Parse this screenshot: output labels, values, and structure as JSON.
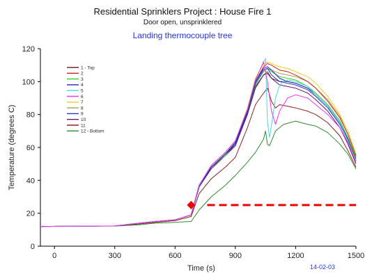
{
  "header": {
    "title": "Residential Sprinklers Project : House Fire 1",
    "subtitle": "Door open, unsprinklered",
    "caption": "Landing thermocouple tree",
    "caption_color": "#2233dd"
  },
  "footer": {
    "date": "14-02-03",
    "date_color": "#2233dd"
  },
  "chart_data": {
    "type": "line",
    "xlabel": "Time (s)",
    "ylabel": "Temperature (degrees C)",
    "xlim": [
      -70,
      1500
    ],
    "ylim": [
      0,
      120
    ],
    "xticks": [
      0,
      300,
      600,
      900,
      1200,
      1500
    ],
    "yticks": [
      0,
      20,
      40,
      60,
      80,
      100,
      120
    ],
    "grid": false,
    "legend_position": "top-left",
    "series": [
      {
        "name": "1 - Top",
        "color": "#6b2a2a",
        "x": [
          -70,
          300,
          420,
          500,
          600,
          680,
          720,
          780,
          850,
          900,
          960,
          1000,
          1040,
          1060,
          1080,
          1120,
          1160,
          1200,
          1260,
          1300,
          1360,
          1420,
          1460,
          1500
        ],
        "y": [
          12,
          12.3,
          14,
          15,
          16,
          19,
          36,
          48,
          55,
          62,
          80,
          96,
          104,
          106,
          102,
          100,
          100,
          99,
          96,
          92,
          85,
          75,
          65,
          53
        ]
      },
      {
        "name": "2",
        "color": "#d22020",
        "x": [
          -70,
          300,
          420,
          500,
          600,
          680,
          720,
          780,
          850,
          900,
          960,
          1000,
          1040,
          1060,
          1080,
          1120,
          1160,
          1200,
          1260,
          1300,
          1360,
          1420,
          1460,
          1500
        ],
        "y": [
          12,
          12.3,
          14,
          15,
          16,
          19,
          37,
          49,
          57,
          64,
          83,
          100,
          109,
          111,
          110,
          107,
          106,
          104,
          100,
          96,
          88,
          78,
          68,
          55
        ]
      },
      {
        "name": "3",
        "color": "#33cc33",
        "x": [
          -70,
          300,
          420,
          500,
          600,
          680,
          720,
          780,
          850,
          900,
          960,
          1000,
          1040,
          1060,
          1080,
          1120,
          1160,
          1200,
          1260,
          1300,
          1360,
          1420,
          1460,
          1500
        ],
        "y": [
          12,
          12.3,
          14,
          15,
          16,
          19,
          36,
          48,
          55,
          63,
          81,
          98,
          106,
          108,
          106,
          103,
          102,
          101,
          97,
          93,
          86,
          76,
          66,
          54
        ]
      },
      {
        "name": "4",
        "color": "#2222aa",
        "x": [
          -70,
          300,
          420,
          500,
          600,
          680,
          720,
          780,
          850,
          900,
          960,
          1000,
          1040,
          1060,
          1080,
          1120,
          1160,
          1200,
          1260,
          1300,
          1360,
          1420,
          1460,
          1500
        ],
        "y": [
          12,
          12.3,
          14,
          15,
          16,
          19,
          37,
          48,
          56,
          63,
          82,
          100,
          108,
          109,
          107,
          102,
          100,
          99,
          96,
          92,
          85,
          75,
          65,
          52
        ]
      },
      {
        "name": "5",
        "color": "#44dddd",
        "x": [
          -70,
          300,
          420,
          500,
          600,
          680,
          720,
          780,
          850,
          900,
          960,
          1000,
          1040,
          1050,
          1060,
          1070,
          1085,
          1100,
          1120,
          1140,
          1160,
          1200,
          1260,
          1300,
          1360,
          1420,
          1460,
          1500
        ],
        "y": [
          12,
          12.3,
          14,
          15,
          16,
          19,
          37,
          49,
          57,
          64,
          83,
          101,
          112,
          114,
          75,
          66,
          78,
          90,
          98,
          100,
          101,
          100,
          97,
          92,
          85,
          75,
          64,
          52
        ]
      },
      {
        "name": "6",
        "color": "#ee33ee",
        "x": [
          -70,
          300,
          420,
          500,
          600,
          680,
          720,
          780,
          850,
          900,
          960,
          1000,
          1040,
          1060,
          1080,
          1100,
          1120,
          1160,
          1200,
          1260,
          1300,
          1360,
          1420,
          1460,
          1500
        ],
        "y": [
          12,
          12.3,
          14,
          15,
          16,
          19,
          37,
          49,
          57,
          64,
          83,
          101,
          112,
          100,
          82,
          74,
          82,
          90,
          92,
          90,
          86,
          80,
          72,
          63,
          51
        ]
      },
      {
        "name": "7",
        "color": "#e8d020",
        "x": [
          -70,
          300,
          420,
          500,
          600,
          680,
          720,
          780,
          850,
          900,
          960,
          1000,
          1040,
          1060,
          1080,
          1120,
          1160,
          1200,
          1260,
          1300,
          1360,
          1420,
          1460,
          1500
        ],
        "y": [
          12,
          12.3,
          14,
          15,
          16,
          19,
          37,
          49,
          57,
          64,
          84,
          102,
          111,
          112,
          111,
          109,
          108,
          106,
          103,
          99,
          91,
          80,
          70,
          56
        ]
      },
      {
        "name": "8",
        "color": "#a8a060",
        "x": [
          -70,
          300,
          420,
          500,
          600,
          680,
          720,
          780,
          850,
          900,
          960,
          1000,
          1040,
          1060,
          1080,
          1120,
          1160,
          1200,
          1260,
          1300,
          1360,
          1420,
          1460,
          1500
        ],
        "y": [
          12,
          12.3,
          14,
          15,
          16,
          19,
          36,
          48,
          56,
          63,
          82,
          99,
          107,
          108,
          107,
          105,
          104,
          103,
          100,
          96,
          89,
          79,
          68,
          55
        ]
      },
      {
        "name": "9",
        "color": "#2233cc",
        "x": [
          -70,
          300,
          420,
          500,
          600,
          680,
          720,
          780,
          850,
          900,
          960,
          1000,
          1040,
          1060,
          1080,
          1120,
          1160,
          1200,
          1260,
          1300,
          1360,
          1420,
          1460,
          1500
        ],
        "y": [
          12,
          12.3,
          14,
          15,
          16,
          19,
          36,
          48,
          56,
          62,
          81,
          99,
          107,
          108,
          104,
          100,
          99,
          98,
          95,
          91,
          84,
          74,
          64,
          52
        ]
      },
      {
        "name": "10",
        "color": "#661a66",
        "x": [
          -70,
          300,
          420,
          500,
          600,
          680,
          720,
          780,
          850,
          900,
          960,
          1000,
          1040,
          1060,
          1080,
          1120,
          1160,
          1200,
          1260,
          1300,
          1360,
          1420,
          1460,
          1500
        ],
        "y": [
          12,
          12.3,
          14,
          15,
          16,
          19,
          36,
          47,
          55,
          61,
          80,
          97,
          104,
          105,
          102,
          98,
          97,
          96,
          93,
          89,
          82,
          72,
          62,
          50
        ]
      },
      {
        "name": "11",
        "color": "#8b2020",
        "x": [
          -70,
          300,
          420,
          500,
          600,
          680,
          720,
          780,
          850,
          900,
          960,
          1000,
          1040,
          1060,
          1080,
          1100,
          1120,
          1160,
          1200,
          1260,
          1300,
          1360,
          1420,
          1460,
          1500
        ],
        "y": [
          12,
          12.3,
          13.5,
          14.5,
          15.5,
          18,
          32,
          41,
          48,
          54,
          72,
          86,
          93,
          96,
          88,
          84,
          86,
          85,
          84,
          82,
          80,
          75,
          67,
          58,
          48
        ]
      },
      {
        "name": "12 - Bottom",
        "color": "#2e8b2e",
        "x": [
          -70,
          300,
          420,
          500,
          600,
          680,
          720,
          780,
          850,
          900,
          960,
          1000,
          1040,
          1050,
          1060,
          1070,
          1100,
          1140,
          1200,
          1260,
          1300,
          1360,
          1420,
          1460,
          1500
        ],
        "y": [
          12,
          12.2,
          13,
          14,
          14.5,
          15,
          22,
          30,
          37,
          43,
          51,
          57,
          65,
          70,
          62,
          61,
          70,
          74,
          76,
          74,
          73,
          69,
          62,
          56,
          47
        ]
      }
    ],
    "annotations": [
      {
        "type": "marker",
        "shape": "diamond",
        "color": "#ee0000",
        "x": 680,
        "y": 25
      },
      {
        "type": "hline",
        "style": "dashed",
        "color": "#ee0000",
        "x_start": 760,
        "x_end": 1500,
        "y": 25
      }
    ]
  }
}
